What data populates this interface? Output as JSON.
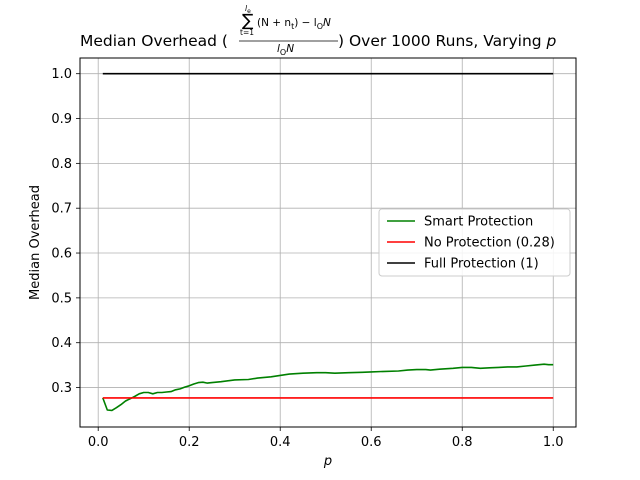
{
  "chart_data": {
    "type": "line",
    "title": {
      "prefix": "Median Overhead (",
      "sum_upper": "l",
      "sum_upper_sub": "e",
      "sum_lower": "t=1",
      "numerator": "(N + n",
      "numerator_sub": "t",
      "numerator_tail": ") − l",
      "numerator_tail_sub": "O",
      "numerator_end": "N",
      "denominator": "l",
      "denominator_sub": "O",
      "denominator_end": "N",
      "suffix": ") Over 1000 Runs, Varying ",
      "suffix_var": "p"
    },
    "xlabel": "p",
    "ylabel": "Median Overhead",
    "xlim": [
      -0.04,
      1.05
    ],
    "ylim": [
      0.212,
      1.035
    ],
    "xticks": [
      "0.0",
      "0.2",
      "0.4",
      "0.6",
      "0.8",
      "1.0"
    ],
    "yticks": [
      "0.3",
      "0.4",
      "0.5",
      "0.6",
      "0.7",
      "0.8",
      "0.9",
      "1.0"
    ],
    "grid": true,
    "legend_position": "center-right",
    "series": [
      {
        "name": "Smart Protection",
        "color": "#008000",
        "x": [
          0.01,
          0.02,
          0.03,
          0.04,
          0.05,
          0.06,
          0.07,
          0.08,
          0.09,
          0.1,
          0.11,
          0.12,
          0.13,
          0.14,
          0.15,
          0.16,
          0.17,
          0.18,
          0.19,
          0.2,
          0.21,
          0.22,
          0.23,
          0.24,
          0.25,
          0.27,
          0.3,
          0.33,
          0.35,
          0.38,
          0.4,
          0.42,
          0.45,
          0.48,
          0.5,
          0.52,
          0.55,
          0.58,
          0.6,
          0.63,
          0.66,
          0.68,
          0.7,
          0.72,
          0.73,
          0.75,
          0.78,
          0.8,
          0.82,
          0.84,
          0.86,
          0.88,
          0.9,
          0.92,
          0.94,
          0.96,
          0.98,
          0.99,
          1.0
        ],
        "y": [
          0.277,
          0.25,
          0.249,
          0.255,
          0.262,
          0.27,
          0.275,
          0.28,
          0.286,
          0.289,
          0.289,
          0.286,
          0.289,
          0.289,
          0.29,
          0.291,
          0.295,
          0.297,
          0.301,
          0.304,
          0.308,
          0.311,
          0.312,
          0.31,
          0.311,
          0.313,
          0.317,
          0.318,
          0.321,
          0.324,
          0.327,
          0.33,
          0.332,
          0.333,
          0.333,
          0.332,
          0.333,
          0.334,
          0.335,
          0.336,
          0.337,
          0.339,
          0.34,
          0.34,
          0.339,
          0.341,
          0.343,
          0.345,
          0.345,
          0.343,
          0.344,
          0.345,
          0.346,
          0.346,
          0.348,
          0.35,
          0.352,
          0.351,
          0.351
        ]
      },
      {
        "name": "No Protection (0.28)",
        "color": "#ff0000",
        "x": [
          0.01,
          1.0
        ],
        "y": [
          0.277,
          0.277
        ]
      },
      {
        "name": "Full Protection (1)",
        "color": "#000000",
        "x": [
          0.01,
          1.0
        ],
        "y": [
          1.0,
          1.0
        ]
      }
    ]
  }
}
